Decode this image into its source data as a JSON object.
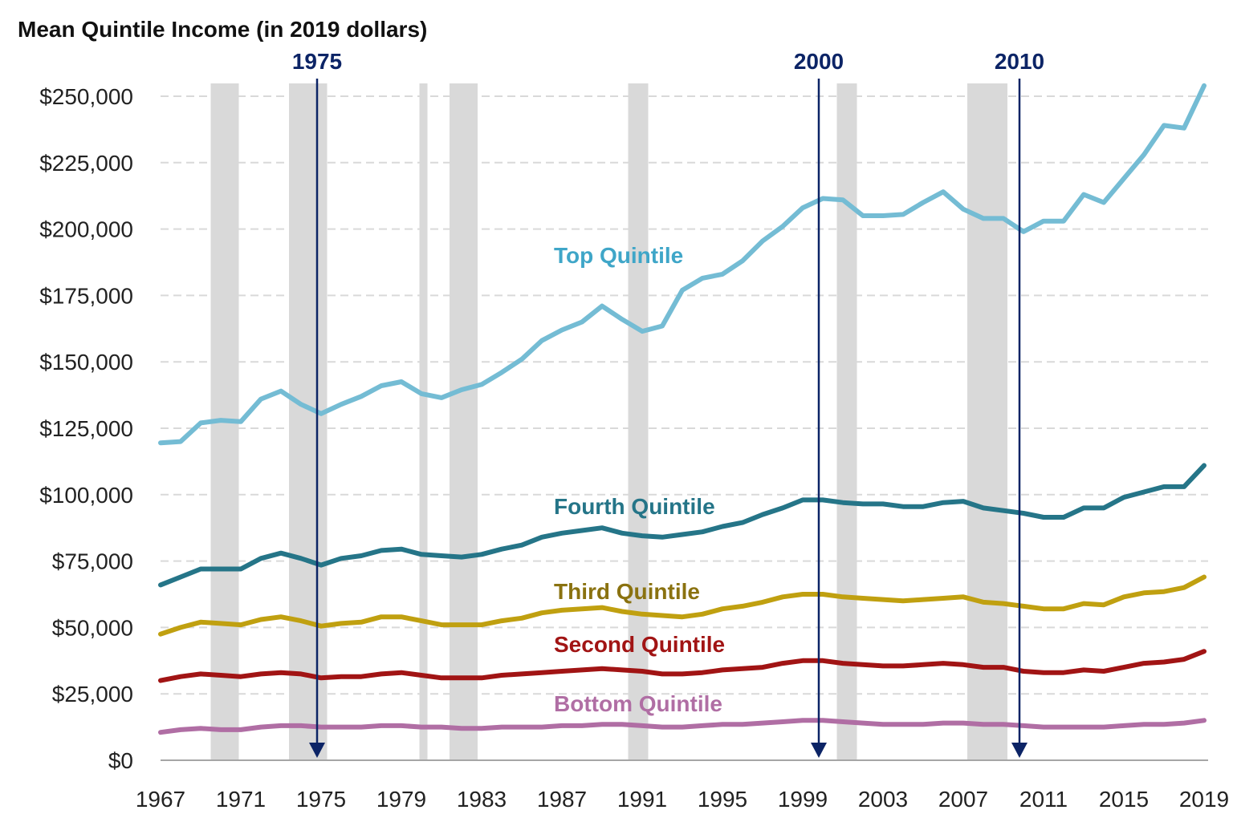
{
  "chart_data": {
    "type": "line",
    "title": "Mean Quintile Income (in 2019 dollars)",
    "xlabel": "",
    "ylabel": "",
    "xlim": [
      1967,
      2019
    ],
    "ylim": [
      0,
      250000
    ],
    "x_ticks": [
      1967,
      1971,
      1975,
      1979,
      1983,
      1987,
      1991,
      1995,
      1999,
      2003,
      2007,
      2011,
      2015,
      2019
    ],
    "y_ticks": [
      0,
      25000,
      50000,
      75000,
      100000,
      125000,
      150000,
      175000,
      200000,
      225000,
      250000
    ],
    "y_tick_labels": [
      "$0",
      "$25,000",
      "$50,000",
      "$75,000",
      "$100,000",
      "$125,000",
      "$150,000",
      "$175,000",
      "$200,000",
      "$225,000",
      "$250,000"
    ],
    "grid": "horizontal dashed",
    "x": [
      1967,
      1968,
      1969,
      1970,
      1971,
      1972,
      1973,
      1974,
      1975,
      1976,
      1977,
      1978,
      1979,
      1980,
      1981,
      1982,
      1983,
      1984,
      1985,
      1986,
      1987,
      1988,
      1989,
      1990,
      1991,
      1992,
      1993,
      1994,
      1995,
      1996,
      1997,
      1998,
      1999,
      2000,
      2001,
      2002,
      2003,
      2004,
      2005,
      2006,
      2007,
      2008,
      2009,
      2010,
      2011,
      2012,
      2013,
      2014,
      2015,
      2016,
      2017,
      2018,
      2019
    ],
    "series": [
      {
        "name": "Top Quintile",
        "color": "#74bcd4",
        "label_color": "#3fa6c8",
        "values": [
          119500,
          120000,
          127000,
          128000,
          127500,
          136000,
          139000,
          134000,
          130500,
          134000,
          137000,
          141000,
          142500,
          138000,
          136500,
          139500,
          141500,
          146000,
          151000,
          158000,
          162000,
          165000,
          171000,
          166000,
          161500,
          163500,
          177000,
          181500,
          183000,
          188000,
          195500,
          201000,
          208000,
          211500,
          211000,
          205000,
          205000,
          205500,
          210000,
          214000,
          207500,
          204000,
          204000,
          199000,
          203000,
          203000,
          213000,
          210000,
          219000,
          228000,
          239000,
          238000,
          254000
        ]
      },
      {
        "name": "Fourth Quintile",
        "color": "#257588",
        "label_color": "#257588",
        "values": [
          66000,
          69000,
          72000,
          72000,
          72000,
          76000,
          78000,
          76000,
          73500,
          76000,
          77000,
          79000,
          79500,
          77500,
          77000,
          76500,
          77500,
          79500,
          81000,
          84000,
          85500,
          86500,
          87500,
          85500,
          84500,
          84000,
          85000,
          86000,
          88000,
          89500,
          92500,
          95000,
          98000,
          98000,
          97000,
          96500,
          96500,
          95500,
          95500,
          97000,
          97500,
          95000,
          94000,
          93000,
          91500,
          91500,
          95000,
          95000,
          99000,
          101000,
          103000,
          103000,
          111000
        ]
      },
      {
        "name": "Third Quintile",
        "color": "#c0a010",
        "label_color": "#8a7210",
        "values": [
          47500,
          50000,
          52000,
          51500,
          51000,
          53000,
          54000,
          52500,
          50500,
          51500,
          52000,
          54000,
          54000,
          52500,
          51000,
          51000,
          51000,
          52500,
          53500,
          55500,
          56500,
          57000,
          57500,
          56000,
          55000,
          54500,
          54000,
          55000,
          57000,
          58000,
          59500,
          61500,
          62500,
          62500,
          61500,
          61000,
          60500,
          60000,
          60500,
          61000,
          61500,
          59500,
          59000,
          58000,
          57000,
          57000,
          59000,
          58500,
          61500,
          63000,
          63500,
          65000,
          69000
        ]
      },
      {
        "name": "Second Quintile",
        "color": "#a11414",
        "label_color": "#a11414",
        "values": [
          30000,
          31500,
          32500,
          32000,
          31500,
          32500,
          33000,
          32500,
          31000,
          31500,
          31500,
          32500,
          33000,
          32000,
          31000,
          31000,
          31000,
          32000,
          32500,
          33000,
          33500,
          34000,
          34500,
          34000,
          33500,
          32500,
          32500,
          33000,
          34000,
          34500,
          35000,
          36500,
          37500,
          37500,
          36500,
          36000,
          35500,
          35500,
          36000,
          36500,
          36000,
          35000,
          35000,
          33500,
          33000,
          33000,
          34000,
          33500,
          35000,
          36500,
          37000,
          38000,
          41000
        ]
      },
      {
        "name": "Bottom Quintile",
        "color": "#b06ea4",
        "label_color": "#b06ea4",
        "values": [
          10500,
          11500,
          12000,
          11500,
          11500,
          12500,
          13000,
          13000,
          12500,
          12500,
          12500,
          13000,
          13000,
          12500,
          12500,
          12000,
          12000,
          12500,
          12500,
          12500,
          13000,
          13000,
          13500,
          13500,
          13000,
          12500,
          12500,
          13000,
          13500,
          13500,
          14000,
          14500,
          15000,
          15000,
          14500,
          14000,
          13500,
          13500,
          13500,
          14000,
          14000,
          13500,
          13500,
          13000,
          12500,
          12500,
          12500,
          12500,
          13000,
          13500,
          13500,
          14000,
          15000
        ]
      }
    ],
    "recession_bands": [
      [
        1969.5,
        1970.9
      ],
      [
        1973.4,
        1975.3
      ],
      [
        1979.9,
        1980.3
      ],
      [
        1981.4,
        1982.8
      ],
      [
        1990.3,
        1991.3
      ],
      [
        2000.7,
        2001.7
      ],
      [
        2007.2,
        2009.2
      ]
    ],
    "recession_color": "#d9d9d9",
    "annotations": [
      {
        "label": "1975",
        "x": 1975,
        "color": "#0c2466"
      },
      {
        "label": "2000",
        "x": 2000,
        "color": "#0c2466"
      },
      {
        "label": "2010",
        "x": 2010,
        "color": "#0c2466"
      }
    ]
  }
}
